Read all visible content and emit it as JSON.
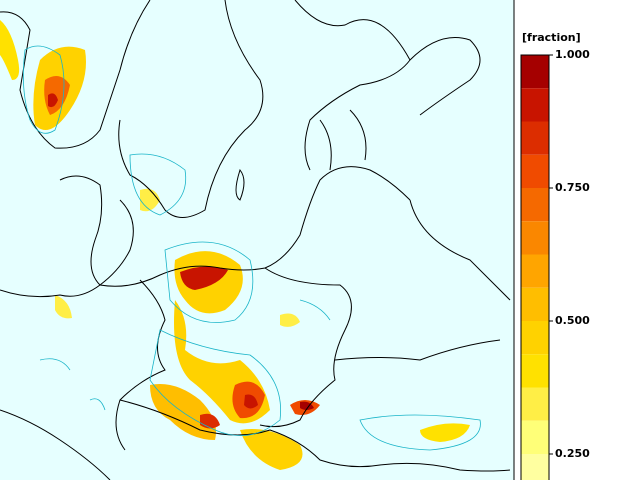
{
  "colorbar": {
    "label": "[fraction]",
    "lim": [
      0.1875,
      1
    ],
    "colors": [
      "#a50000",
      "#c81400",
      "#dc2d00",
      "#f04b00",
      "#f56900",
      "#fa8700",
      "#ffa500",
      "#ffbe00",
      "#ffd200",
      "#ffe100",
      "#ffee46",
      "#ffff78",
      "#ffffa0"
    ],
    "ticks": [
      {
        "value": 1,
        "label": "1.000"
      },
      {
        "value": 0.75,
        "label": "0.750"
      },
      {
        "value": 0.5,
        "label": "0.500"
      },
      {
        "value": 0.25,
        "label": "0.250"
      }
    ]
  }
}
